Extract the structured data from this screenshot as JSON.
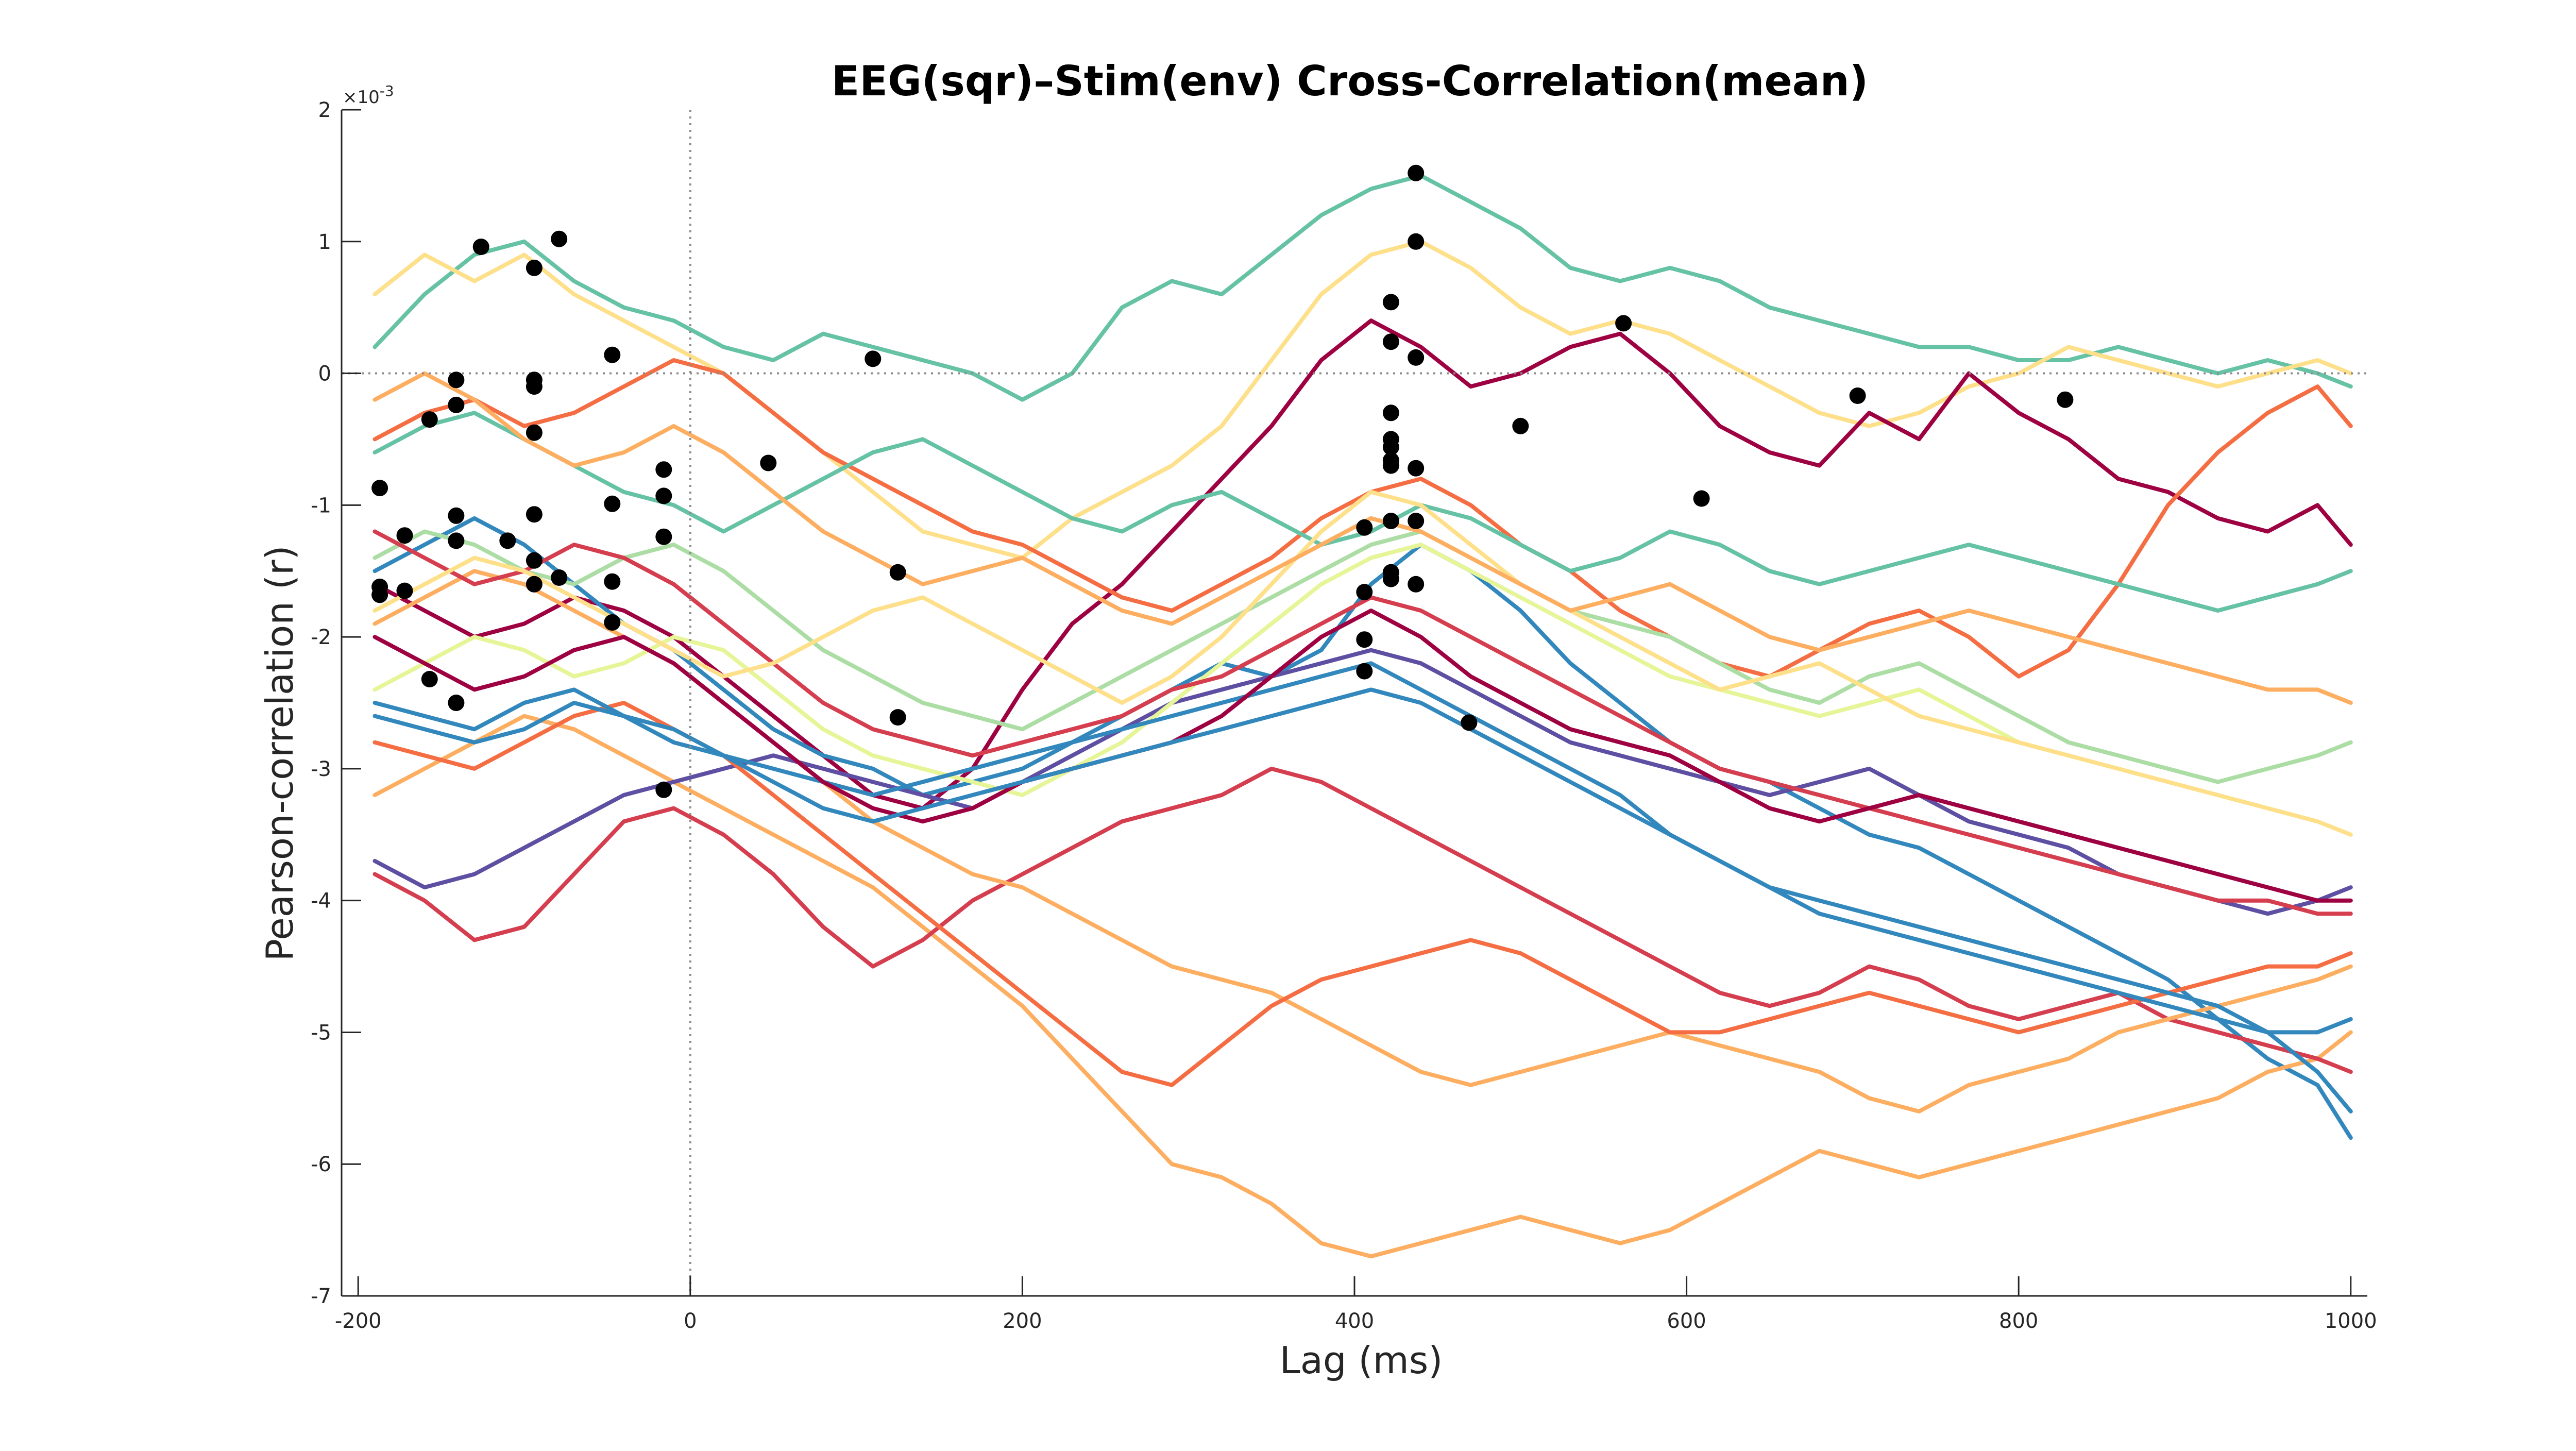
{
  "chart_data": {
    "type": "line",
    "title": "EEG(sqr)–Stim(env) Cross-Correlation(mean)",
    "xlabel": "Lag (ms)",
    "ylabel": "Pearson-correlation (r)",
    "y_multiplier_label": "×10",
    "y_multiplier_exponent": "-3",
    "xlim": [
      -210,
      1010
    ],
    "ylim": [
      -7,
      2
    ],
    "xticks": [
      -200,
      0,
      200,
      400,
      600,
      800,
      1000
    ],
    "xtick_labels": [
      "-200",
      "0",
      "200",
      "400",
      "600",
      "800",
      "1000"
    ],
    "yticks": [
      2,
      1,
      0,
      -1,
      -2,
      -3,
      -4,
      -5,
      -6,
      -7
    ],
    "ytick_labels": [
      "2",
      "1",
      "0",
      "-1",
      "-2",
      "-3",
      "-4",
      "-5",
      "-6",
      "-7"
    ],
    "reference_lines": [
      {
        "orientation": "horizontal",
        "value": 0,
        "style": "dotted"
      },
      {
        "orientation": "vertical",
        "value": 0,
        "style": "dotted"
      }
    ],
    "grid": false,
    "legend": "none",
    "x": [
      -190,
      -160,
      -130,
      -100,
      -70,
      -40,
      -10,
      20,
      50,
      80,
      110,
      140,
      170,
      200,
      230,
      260,
      290,
      320,
      350,
      380,
      410,
      440,
      470,
      500,
      530,
      560,
      590,
      620,
      650,
      680,
      710,
      740,
      770,
      800,
      830,
      860,
      890,
      920,
      950,
      980,
      1000
    ],
    "series": [
      {
        "color": "#66c2a5",
        "values": [
          0.2,
          0.6,
          0.9,
          1.0,
          0.7,
          0.5,
          0.4,
          0.2,
          0.1,
          0.3,
          0.2,
          0.1,
          0.0,
          -0.2,
          0.0,
          0.5,
          0.7,
          0.6,
          0.9,
          1.2,
          1.4,
          1.5,
          1.3,
          1.1,
          0.8,
          0.7,
          0.8,
          0.7,
          0.5,
          0.4,
          0.3,
          0.2,
          0.2,
          0.1,
          0.1,
          0.2,
          0.1,
          0.0,
          0.1,
          0.0,
          -0.1
        ]
      },
      {
        "color": "#fee08b",
        "values": [
          0.6,
          0.9,
          0.7,
          0.9,
          0.6,
          0.4,
          0.2,
          0.0,
          -0.3,
          -0.6,
          -0.9,
          -1.2,
          -1.3,
          -1.4,
          -1.1,
          -0.9,
          -0.7,
          -0.4,
          0.1,
          0.6,
          0.9,
          1.0,
          0.8,
          0.5,
          0.3,
          0.4,
          0.3,
          0.1,
          -0.1,
          -0.3,
          -0.4,
          -0.3,
          -0.1,
          0.0,
          0.2,
          0.1,
          0.0,
          -0.1,
          0.0,
          0.1,
          0.0
        ]
      },
      {
        "color": "#9e0142",
        "values": [
          -1.6,
          -1.8,
          -2.0,
          -1.9,
          -1.7,
          -1.8,
          -2.0,
          -2.3,
          -2.6,
          -2.9,
          -3.2,
          -3.3,
          -3.0,
          -2.4,
          -1.9,
          -1.6,
          -1.2,
          -0.8,
          -0.4,
          0.1,
          0.4,
          0.2,
          -0.1,
          0.0,
          0.2,
          0.3,
          0.0,
          -0.4,
          -0.6,
          -0.7,
          -0.3,
          -0.5,
          0.0,
          -0.3,
          -0.5,
          -0.8,
          -0.9,
          -1.1,
          -1.2,
          -1.0,
          -1.3
        ]
      },
      {
        "color": "#3288bd",
        "values": [
          -1.5,
          -1.3,
          -1.1,
          -1.3,
          -1.6,
          -1.9,
          -2.1,
          -2.4,
          -2.7,
          -2.9,
          -3.0,
          -3.2,
          -3.1,
          -3.0,
          -2.8,
          -2.6,
          -2.4,
          -2.2,
          -2.3,
          -2.1,
          -1.6,
          -1.3,
          -1.5,
          -1.8,
          -2.2,
          -2.5,
          -2.8,
          -3.0,
          -3.1,
          -3.3,
          -3.5,
          -3.6,
          -3.8,
          -4.0,
          -4.2,
          -4.4,
          -4.6,
          -4.9,
          -5.2,
          -5.4,
          -5.8
        ]
      },
      {
        "color": "#f46d43",
        "values": [
          -0.5,
          -0.3,
          -0.2,
          -0.4,
          -0.3,
          -0.1,
          0.1,
          0.0,
          -0.3,
          -0.6,
          -0.8,
          -1.0,
          -1.2,
          -1.3,
          -1.5,
          -1.7,
          -1.8,
          -1.6,
          -1.4,
          -1.1,
          -0.9,
          -0.8,
          -1.0,
          -1.3,
          -1.5,
          -1.8,
          -2.0,
          -2.2,
          -2.3,
          -2.1,
          -1.9,
          -1.8,
          -2.0,
          -2.3,
          -2.1,
          -1.6,
          -1.0,
          -0.6,
          -0.3,
          -0.1,
          -0.4
        ]
      },
      {
        "color": "#fdae61",
        "values": [
          -3.2,
          -3.0,
          -2.8,
          -2.6,
          -2.7,
          -2.9,
          -3.1,
          -3.3,
          -3.5,
          -3.7,
          -3.9,
          -4.2,
          -4.5,
          -4.8,
          -5.2,
          -5.6,
          -6.0,
          -6.1,
          -6.3,
          -6.6,
          -6.7,
          -6.6,
          -6.5,
          -6.4,
          -6.5,
          -6.6,
          -6.5,
          -6.3,
          -6.1,
          -5.9,
          -6.0,
          -6.1,
          -6.0,
          -5.9,
          -5.8,
          -5.7,
          -5.6,
          -5.5,
          -5.3,
          -5.2,
          -5.0
        ]
      },
      {
        "color": "#d53e4f",
        "values": [
          -3.8,
          -4.0,
          -4.3,
          -4.2,
          -3.8,
          -3.4,
          -3.3,
          -3.5,
          -3.8,
          -4.2,
          -4.5,
          -4.3,
          -4.0,
          -3.8,
          -3.6,
          -3.4,
          -3.3,
          -3.2,
          -3.0,
          -3.1,
          -3.3,
          -3.5,
          -3.7,
          -3.9,
          -4.1,
          -4.3,
          -4.5,
          -4.7,
          -4.8,
          -4.7,
          -4.5,
          -4.6,
          -4.8,
          -4.9,
          -4.8,
          -4.7,
          -4.9,
          -5.0,
          -5.1,
          -5.2,
          -5.3
        ]
      },
      {
        "color": "#5e4fa2",
        "values": [
          -3.7,
          -3.9,
          -3.8,
          -3.6,
          -3.4,
          -3.2,
          -3.1,
          -3.0,
          -2.9,
          -3.0,
          -3.1,
          -3.2,
          -3.3,
          -3.1,
          -2.9,
          -2.7,
          -2.5,
          -2.4,
          -2.3,
          -2.2,
          -2.1,
          -2.2,
          -2.4,
          -2.6,
          -2.8,
          -2.9,
          -3.0,
          -3.1,
          -3.2,
          -3.1,
          -3.0,
          -3.2,
          -3.4,
          -3.5,
          -3.6,
          -3.8,
          -3.9,
          -4.0,
          -4.1,
          -4.0,
          -3.9
        ]
      },
      {
        "color": "#abdda4",
        "values": [
          -1.4,
          -1.2,
          -1.3,
          -1.5,
          -1.6,
          -1.4,
          -1.3,
          -1.5,
          -1.8,
          -2.1,
          -2.3,
          -2.5,
          -2.6,
          -2.7,
          -2.5,
          -2.3,
          -2.1,
          -1.9,
          -1.7,
          -1.5,
          -1.3,
          -1.2,
          -1.4,
          -1.6,
          -1.8,
          -1.9,
          -2.0,
          -2.2,
          -2.4,
          -2.5,
          -2.3,
          -2.2,
          -2.4,
          -2.6,
          -2.8,
          -2.9,
          -3.0,
          -3.1,
          -3.0,
          -2.9,
          -2.8
        ]
      },
      {
        "color": "#e6f598",
        "values": [
          -2.4,
          -2.2,
          -2.0,
          -2.1,
          -2.3,
          -2.2,
          -2.0,
          -2.1,
          -2.4,
          -2.7,
          -2.9,
          -3.0,
          -3.1,
          -3.2,
          -3.0,
          -2.8,
          -2.5,
          -2.2,
          -1.9,
          -1.6,
          -1.4,
          -1.3,
          -1.5,
          -1.7,
          -1.9,
          -2.1,
          -2.3,
          -2.4,
          -2.5,
          -2.6,
          -2.5,
          -2.4,
          -2.6,
          -2.8,
          -2.9,
          -3.0,
          -3.1,
          -3.2,
          -3.3,
          -3.4,
          -3.5
        ]
      },
      {
        "color": "#fdae61",
        "values": [
          -1.9,
          -1.7,
          -1.5,
          -1.6,
          -1.8,
          -2.0,
          -2.2,
          -2.5,
          -2.8,
          -3.1,
          -3.4,
          -3.6,
          -3.8,
          -3.9,
          -4.1,
          -4.3,
          -4.5,
          -4.6,
          -4.7,
          -4.9,
          -5.1,
          -5.3,
          -5.4,
          -5.3,
          -5.2,
          -5.1,
          -5.0,
          -5.1,
          -5.2,
          -5.3,
          -5.5,
          -5.6,
          -5.4,
          -5.3,
          -5.2,
          -5.0,
          -4.9,
          -4.8,
          -4.7,
          -4.6,
          -4.5
        ]
      },
      {
        "color": "#f46d43",
        "values": [
          -2.8,
          -2.9,
          -3.0,
          -2.8,
          -2.6,
          -2.5,
          -2.7,
          -2.9,
          -3.2,
          -3.5,
          -3.8,
          -4.1,
          -4.4,
          -4.7,
          -5.0,
          -5.3,
          -5.4,
          -5.1,
          -4.8,
          -4.6,
          -4.5,
          -4.4,
          -4.3,
          -4.4,
          -4.6,
          -4.8,
          -5.0,
          -5.0,
          -4.9,
          -4.8,
          -4.7,
          -4.8,
          -4.9,
          -5.0,
          -4.9,
          -4.8,
          -4.7,
          -4.6,
          -4.5,
          -4.5,
          -4.4
        ]
      },
      {
        "color": "#3288bd",
        "values": [
          -2.5,
          -2.6,
          -2.7,
          -2.5,
          -2.4,
          -2.6,
          -2.8,
          -2.9,
          -3.0,
          -3.1,
          -3.2,
          -3.1,
          -3.0,
          -2.9,
          -2.8,
          -2.7,
          -2.6,
          -2.5,
          -2.4,
          -2.3,
          -2.2,
          -2.4,
          -2.6,
          -2.8,
          -3.0,
          -3.2,
          -3.5,
          -3.7,
          -3.9,
          -4.1,
          -4.2,
          -4.3,
          -4.4,
          -4.5,
          -4.6,
          -4.7,
          -4.8,
          -4.9,
          -5.0,
          -5.0,
          -4.9
        ]
      },
      {
        "color": "#d53e4f",
        "values": [
          -1.2,
          -1.4,
          -1.6,
          -1.5,
          -1.3,
          -1.4,
          -1.6,
          -1.9,
          -2.2,
          -2.5,
          -2.7,
          -2.8,
          -2.9,
          -2.8,
          -2.7,
          -2.6,
          -2.4,
          -2.3,
          -2.1,
          -1.9,
          -1.7,
          -1.8,
          -2.0,
          -2.2,
          -2.4,
          -2.6,
          -2.8,
          -3.0,
          -3.1,
          -3.2,
          -3.3,
          -3.4,
          -3.5,
          -3.6,
          -3.7,
          -3.8,
          -3.9,
          -4.0,
          -4.0,
          -4.1,
          -4.1
        ]
      },
      {
        "color": "#66c2a5",
        "values": [
          -0.6,
          -0.4,
          -0.3,
          -0.5,
          -0.7,
          -0.9,
          -1.0,
          -1.2,
          -1.0,
          -0.8,
          -0.6,
          -0.5,
          -0.7,
          -0.9,
          -1.1,
          -1.2,
          -1.0,
          -0.9,
          -1.1,
          -1.3,
          -1.2,
          -1.0,
          -1.1,
          -1.3,
          -1.5,
          -1.4,
          -1.2,
          -1.3,
          -1.5,
          -1.6,
          -1.5,
          -1.4,
          -1.3,
          -1.4,
          -1.5,
          -1.6,
          -1.7,
          -1.8,
          -1.7,
          -1.6,
          -1.5
        ]
      },
      {
        "color": "#fee08b",
        "values": [
          -1.8,
          -1.6,
          -1.4,
          -1.5,
          -1.7,
          -1.9,
          -2.1,
          -2.3,
          -2.2,
          -2.0,
          -1.8,
          -1.7,
          -1.9,
          -2.1,
          -2.3,
          -2.5,
          -2.3,
          -2.0,
          -1.6,
          -1.2,
          -0.9,
          -1.0,
          -1.3,
          -1.6,
          -1.8,
          -2.0,
          -2.2,
          -2.4,
          -2.3,
          -2.2,
          -2.4,
          -2.6,
          -2.7,
          -2.8,
          -2.9,
          -3.0,
          -3.1,
          -3.2,
          -3.3,
          -3.4,
          -3.5
        ]
      },
      {
        "color": "#9e0142",
        "values": [
          -2.0,
          -2.2,
          -2.4,
          -2.3,
          -2.1,
          -2.0,
          -2.2,
          -2.5,
          -2.8,
          -3.1,
          -3.3,
          -3.4,
          -3.3,
          -3.1,
          -3.0,
          -2.9,
          -2.8,
          -2.6,
          -2.3,
          -2.0,
          -1.8,
          -2.0,
          -2.3,
          -2.5,
          -2.7,
          -2.8,
          -2.9,
          -3.1,
          -3.3,
          -3.4,
          -3.3,
          -3.2,
          -3.3,
          -3.4,
          -3.5,
          -3.6,
          -3.7,
          -3.8,
          -3.9,
          -4.0,
          -4.0
        ]
      },
      {
        "color": "#fdae61",
        "values": [
          -0.2,
          0.0,
          -0.2,
          -0.5,
          -0.7,
          -0.6,
          -0.4,
          -0.6,
          -0.9,
          -1.2,
          -1.4,
          -1.6,
          -1.5,
          -1.4,
          -1.6,
          -1.8,
          -1.9,
          -1.7,
          -1.5,
          -1.3,
          -1.1,
          -1.2,
          -1.4,
          -1.6,
          -1.8,
          -1.7,
          -1.6,
          -1.8,
          -2.0,
          -2.1,
          -2.0,
          -1.9,
          -1.8,
          -1.9,
          -2.0,
          -2.1,
          -2.2,
          -2.3,
          -2.4,
          -2.4,
          -2.5
        ]
      },
      {
        "color": "#3288bd",
        "values": [
          -2.6,
          -2.7,
          -2.8,
          -2.7,
          -2.5,
          -2.6,
          -2.7,
          -2.9,
          -3.1,
          -3.3,
          -3.4,
          -3.3,
          -3.2,
          -3.1,
          -3.0,
          -2.9,
          -2.8,
          -2.7,
          -2.6,
          -2.5,
          -2.4,
          -2.5,
          -2.7,
          -2.9,
          -3.1,
          -3.3,
          -3.5,
          -3.7,
          -3.9,
          -4.0,
          -4.1,
          -4.2,
          -4.3,
          -4.4,
          -4.5,
          -4.6,
          -4.7,
          -4.8,
          -5.0,
          -5.3,
          -5.6
        ]
      }
    ],
    "peak_markers": [
      {
        "x": -187,
        "y": -0.87
      },
      {
        "x": -187,
        "y": -1.62
      },
      {
        "x": -187,
        "y": -1.68
      },
      {
        "x": -172,
        "y": -1.23
      },
      {
        "x": -172,
        "y": -1.65
      },
      {
        "x": -157,
        "y": -0.35
      },
      {
        "x": -157,
        "y": -2.32
      },
      {
        "x": -141,
        "y": -0.05
      },
      {
        "x": -141,
        "y": -0.24
      },
      {
        "x": -141,
        "y": -1.08
      },
      {
        "x": -141,
        "y": -1.27
      },
      {
        "x": -141,
        "y": -2.5
      },
      {
        "x": -126,
        "y": 0.96
      },
      {
        "x": -110,
        "y": -1.27
      },
      {
        "x": -94,
        "y": 0.8
      },
      {
        "x": -94,
        "y": -0.05
      },
      {
        "x": -94,
        "y": -0.1
      },
      {
        "x": -94,
        "y": -0.45
      },
      {
        "x": -94,
        "y": -1.07
      },
      {
        "x": -94,
        "y": -1.42
      },
      {
        "x": -94,
        "y": -1.6
      },
      {
        "x": -79,
        "y": 1.02
      },
      {
        "x": -79,
        "y": -1.55
      },
      {
        "x": -47,
        "y": 0.14
      },
      {
        "x": -47,
        "y": -0.99
      },
      {
        "x": -47,
        "y": -1.58
      },
      {
        "x": -47,
        "y": -1.89
      },
      {
        "x": -16,
        "y": -0.73
      },
      {
        "x": -16,
        "y": -0.93
      },
      {
        "x": -16,
        "y": -1.24
      },
      {
        "x": -16,
        "y": -3.16
      },
      {
        "x": 47,
        "y": -0.68
      },
      {
        "x": 110,
        "y": 0.11
      },
      {
        "x": 125,
        "y": -1.51
      },
      {
        "x": 125,
        "y": -2.61
      },
      {
        "x": 406,
        "y": -1.17
      },
      {
        "x": 406,
        "y": -1.66
      },
      {
        "x": 406,
        "y": -2.02
      },
      {
        "x": 406,
        "y": -2.26
      },
      {
        "x": 422,
        "y": 0.54
      },
      {
        "x": 422,
        "y": 0.24
      },
      {
        "x": 422,
        "y": -0.3
      },
      {
        "x": 422,
        "y": -0.5
      },
      {
        "x": 422,
        "y": -0.56
      },
      {
        "x": 422,
        "y": -0.66
      },
      {
        "x": 422,
        "y": -0.7
      },
      {
        "x": 422,
        "y": -1.12
      },
      {
        "x": 422,
        "y": -1.51
      },
      {
        "x": 422,
        "y": -1.56
      },
      {
        "x": 437,
        "y": 1.52
      },
      {
        "x": 437,
        "y": 1.0
      },
      {
        "x": 437,
        "y": 0.12
      },
      {
        "x": 437,
        "y": -0.72
      },
      {
        "x": 437,
        "y": -1.12
      },
      {
        "x": 437,
        "y": -1.6
      },
      {
        "x": 469,
        "y": -2.65
      },
      {
        "x": 500,
        "y": -0.4
      },
      {
        "x": 562,
        "y": 0.38
      },
      {
        "x": 609,
        "y": -0.95
      },
      {
        "x": 703,
        "y": -0.17
      },
      {
        "x": 828,
        "y": -0.2
      }
    ]
  }
}
